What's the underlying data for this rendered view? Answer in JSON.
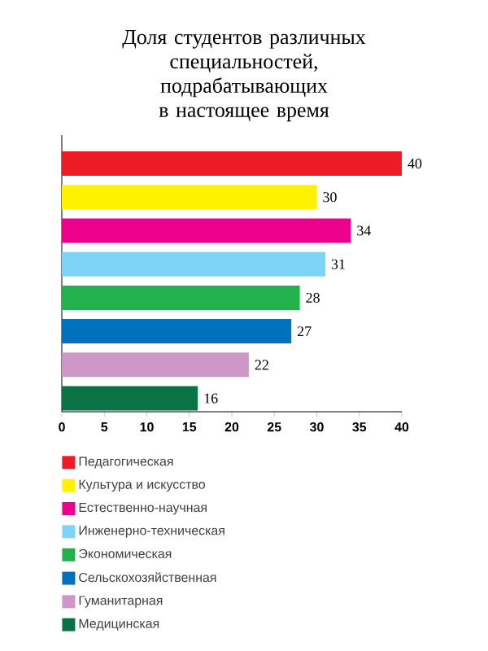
{
  "chart_data": {
    "type": "bar",
    "orientation": "horizontal",
    "title": "Доля студентов различных специальностей, подрабатывающих в настоящее время",
    "categories": [
      null,
      null,
      null,
      null,
      null,
      null,
      null,
      null
    ],
    "series": [
      {
        "name": "Педагогическая",
        "color": "#ed1c24",
        "values": [
          40,
          null,
          null,
          null,
          null,
          null,
          null,
          null
        ],
        "value_labels": [
          "40",
          null,
          null,
          null,
          null,
          null,
          null,
          null
        ]
      },
      {
        "name": "Культура и искусство",
        "color": "#fff200",
        "values": [
          null,
          30,
          null,
          null,
          null,
          null,
          null,
          null
        ],
        "value_labels": [
          null,
          "30",
          null,
          null,
          null,
          null,
          null,
          null
        ]
      },
      {
        "name": "Естественно-научная",
        "color": "#ec008c",
        "values": [
          null,
          null,
          34,
          null,
          null,
          null,
          null,
          null
        ],
        "value_labels": [
          null,
          null,
          "34",
          null,
          null,
          null,
          null,
          null
        ]
      },
      {
        "name": "Инженерно-техническая",
        "color": "#7dd4f6",
        "values": [
          null,
          null,
          null,
          31,
          null,
          null,
          null,
          null
        ],
        "value_labels": [
          null,
          null,
          null,
          "31",
          null,
          null,
          null,
          null
        ]
      },
      {
        "name": "Экономическая",
        "color": "#22b14c",
        "values": [
          null,
          null,
          null,
          null,
          28,
          null,
          null,
          null
        ],
        "value_labels": [
          null,
          null,
          null,
          null,
          "28",
          null,
          null,
          null
        ]
      },
      {
        "name": "Сельскохозяйственная",
        "color": "#0071bc",
        "values": [
          null,
          null,
          null,
          null,
          null,
          27,
          null,
          null
        ],
        "value_labels": [
          null,
          null,
          null,
          null,
          null,
          "27",
          null,
          null
        ]
      },
      {
        "name": "Гуманитарная",
        "color": "#cf96c8",
        "values": [
          null,
          null,
          null,
          null,
          null,
          null,
          22,
          null
        ],
        "value_labels": [
          null,
          null,
          null,
          null,
          null,
          null,
          "22",
          null
        ]
      },
      {
        "name": "Медицинская",
        "color": "#0a7346",
        "values": [
          null,
          null,
          null,
          null,
          null,
          null,
          null,
          16
        ],
        "value_labels": [
          null,
          null,
          null,
          null,
          null,
          null,
          null,
          "16"
        ]
      }
    ],
    "xlim": [
      0,
      40
    ],
    "xticks": [
      0,
      5,
      10,
      15,
      20,
      25,
      30,
      35,
      40
    ],
    "legend": "bottom"
  }
}
